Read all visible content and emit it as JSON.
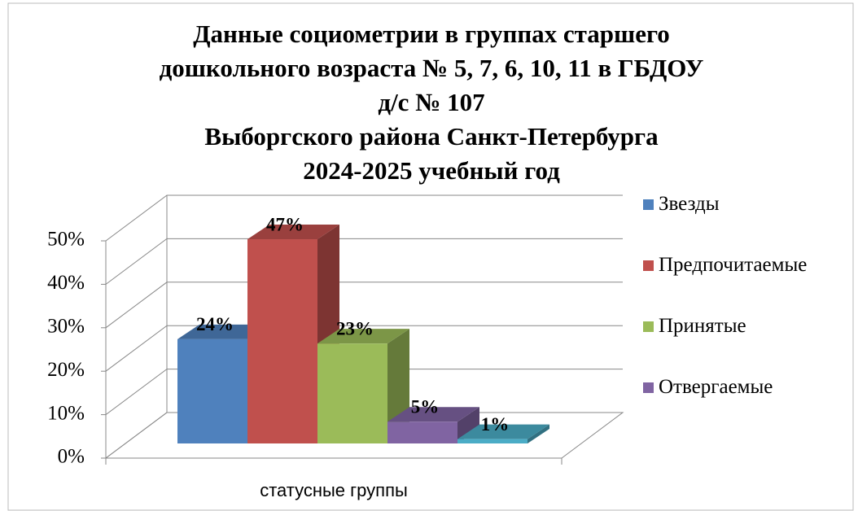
{
  "chart_data": {
    "type": "bar3d",
    "title": [
      "Данные социометрии в группах старшего",
      "дошкольного возраста № 5, 7, 6, 10, 11 в ГБДОУ",
      "д/с № 107",
      "Выборгского района Санкт-Петербурга",
      "2024-2025 учебный год"
    ],
    "categories": [
      "статусные группы"
    ],
    "series": [
      {
        "name": "Звезды",
        "color": "#4f81bd",
        "values": [
          24
        ],
        "value_labels": [
          "24%"
        ]
      },
      {
        "name": "Предпочитаемые",
        "color": "#c0504d",
        "values": [
          47
        ],
        "value_labels": [
          "47%"
        ]
      },
      {
        "name": "Принятые",
        "color": "#9bbb59",
        "values": [
          23
        ],
        "value_labels": [
          "23%"
        ]
      },
      {
        "name": "Отвергаемые",
        "color": "#8064a2",
        "values": [
          5
        ],
        "value_labels": [
          "5%"
        ]
      },
      {
        "name": null,
        "color": "#4bacc6",
        "values": [
          1
        ],
        "value_labels": [
          "1%"
        ]
      }
    ],
    "ylim": [
      0,
      50
    ],
    "yticks": [
      {
        "value": 0,
        "label": "0%"
      },
      {
        "value": 10,
        "label": "10%"
      },
      {
        "value": 20,
        "label": "20%"
      },
      {
        "value": 30,
        "label": "30%"
      },
      {
        "value": 40,
        "label": "40%"
      },
      {
        "value": 50,
        "label": "50%"
      }
    ],
    "grid": true,
    "legend": "right"
  }
}
